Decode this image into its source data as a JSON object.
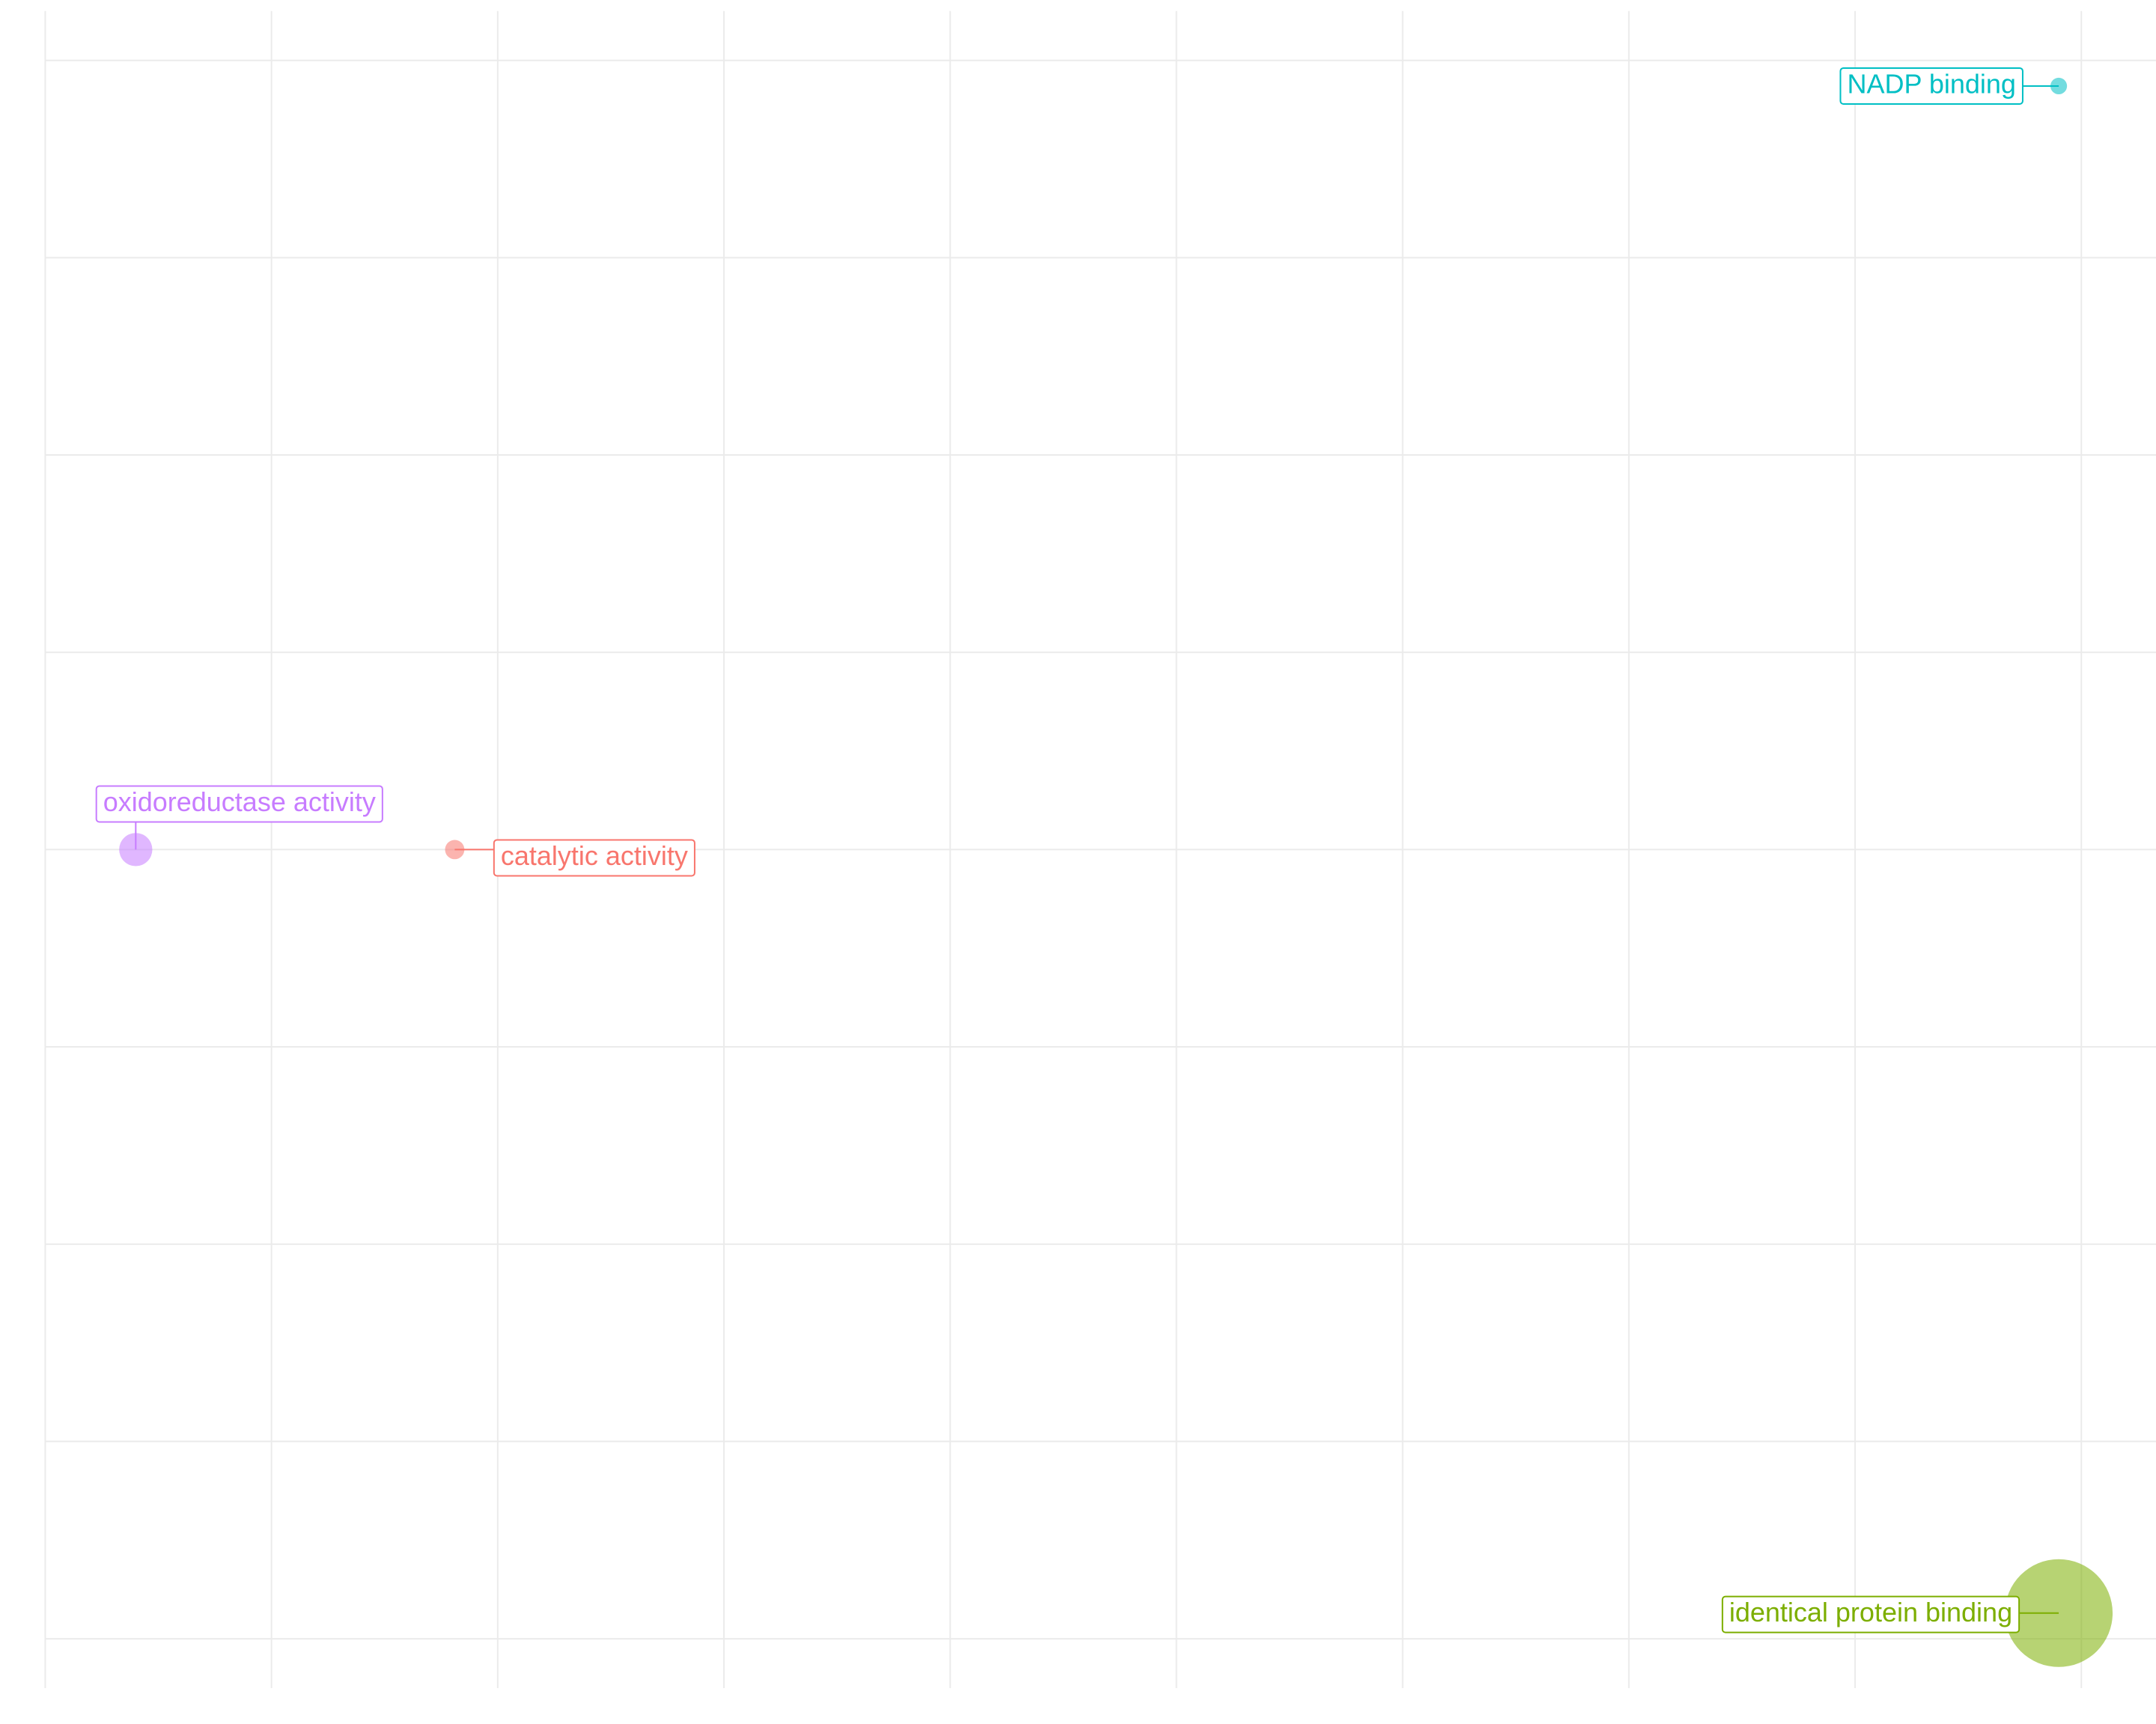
{
  "chart_data": {
    "type": "scatter",
    "xlim": [
      -0.2,
      9.33
    ],
    "ylim": [
      -0.25,
      8.25
    ],
    "xticks": [
      0,
      1,
      2,
      3,
      4,
      5,
      6,
      7,
      8,
      9
    ],
    "yticks": [
      0,
      1,
      2,
      3,
      4,
      5,
      6,
      7,
      8
    ],
    "grid": true,
    "series": [
      {
        "name": "oxidoreductase activity",
        "color": "#c77cff",
        "x": [
          0.4
        ],
        "values": [
          4.0
        ],
        "sizes": [
          144
        ]
      },
      {
        "name": "catalytic activity",
        "color": "#f8766d",
        "x": [
          1.81
        ],
        "values": [
          4.0
        ],
        "sizes": [
          49
        ]
      },
      {
        "name": "NADP binding",
        "color": "#00bfc4",
        "x": [
          8.9
        ],
        "values": [
          7.87
        ],
        "sizes": [
          36
        ]
      },
      {
        "name": "identical protein binding",
        "color": "#7cae00",
        "x": [
          8.9
        ],
        "values": [
          0.13
        ],
        "sizes": [
          1521
        ]
      }
    ]
  }
}
